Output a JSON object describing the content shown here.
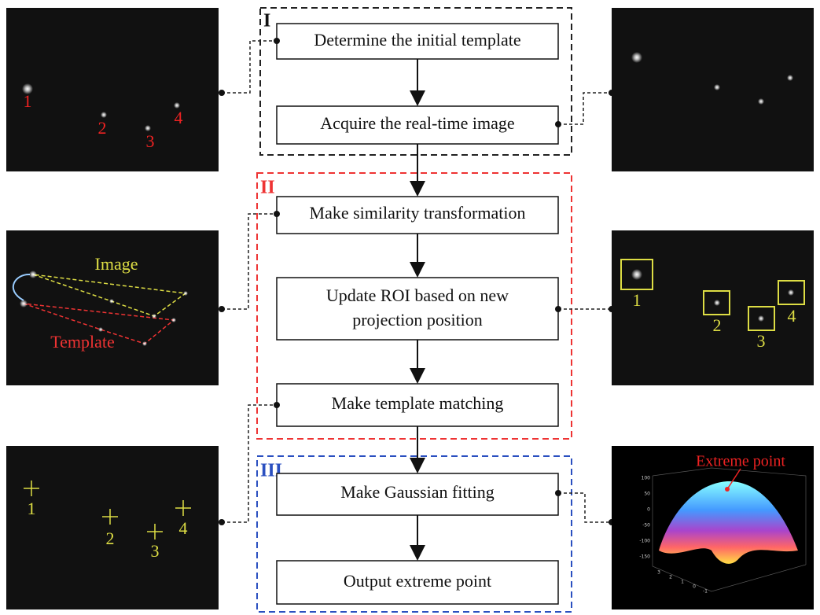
{
  "stages": [
    {
      "label": "I"
    },
    {
      "label": "II"
    },
    {
      "label": "III"
    }
  ],
  "steps": [
    {
      "text": "Determine the initial template"
    },
    {
      "text": "Acquire the real-time image"
    },
    {
      "text": "Make similarity transformation"
    },
    {
      "text": "Update ROI based on new",
      "text2": "projection position"
    },
    {
      "text": "Make template matching"
    },
    {
      "text": "Make Gaussian fitting"
    },
    {
      "text": "Output extreme point"
    }
  ],
  "images": {
    "initial_labels": [
      "1",
      "2",
      "3",
      "4"
    ],
    "similarity_labels": [
      "Image",
      "Template"
    ],
    "roi_labels": [
      "1",
      "2",
      "3",
      "4"
    ],
    "match_labels": [
      "1",
      "2",
      "3",
      "4"
    ],
    "fit_label": "Extreme point",
    "fit_zticks": [
      "100",
      "50",
      "0",
      "-50",
      "-100",
      "-150"
    ],
    "fit_xticks": [
      "3",
      "2",
      "1",
      "0",
      "-1"
    ]
  }
}
